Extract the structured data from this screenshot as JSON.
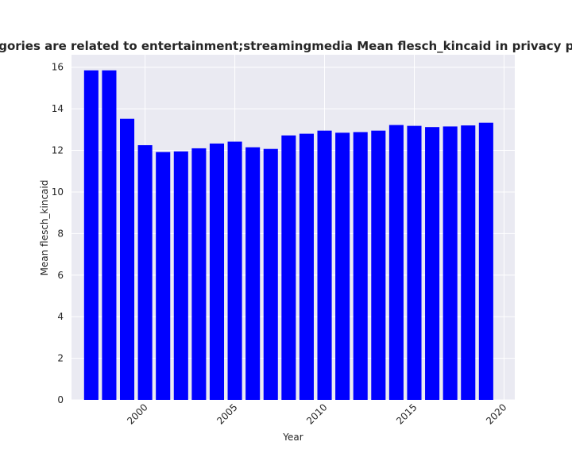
{
  "chart_data": {
    "type": "bar",
    "title": "categories are related to entertainment;streamingmedia Mean flesch_kincaid in privacy policies",
    "xlabel": "Year",
    "ylabel": "Mean flesch_kincaid",
    "x": [
      1997,
      1998,
      1999,
      2000,
      2001,
      2002,
      2003,
      2004,
      2005,
      2006,
      2007,
      2008,
      2009,
      2010,
      2011,
      2012,
      2013,
      2014,
      2015,
      2016,
      2017,
      2018,
      2019
    ],
    "values": [
      15.85,
      15.85,
      13.52,
      12.25,
      11.92,
      11.95,
      12.1,
      12.33,
      12.42,
      12.15,
      12.07,
      12.72,
      12.8,
      12.95,
      12.85,
      12.88,
      12.95,
      13.22,
      13.18,
      13.12,
      13.15,
      13.2,
      13.33
    ],
    "xlim": [
      1995.9,
      2020.6
    ],
    "ylim": [
      0,
      16.6
    ],
    "xticks": [
      2000,
      2005,
      2010,
      2015,
      2020
    ],
    "yticks": [
      0,
      2,
      4,
      6,
      8,
      10,
      12,
      14,
      16
    ],
    "bar_width": 0.8,
    "bar_color": "#0000ff",
    "background_color": "#eaeaf2",
    "grid_color": "#ffffff",
    "grid": true,
    "x_tick_rotation": 45
  }
}
